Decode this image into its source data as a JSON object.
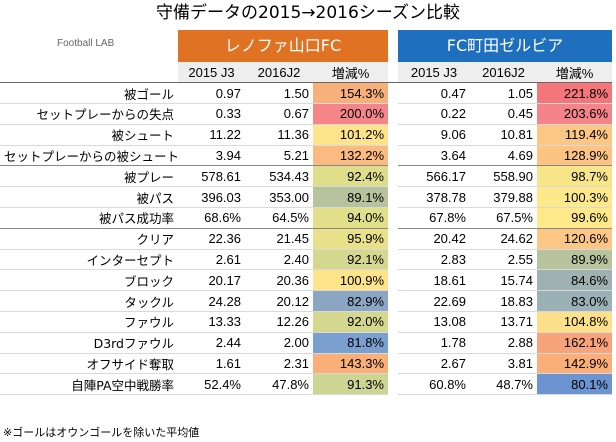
{
  "title": "守備データの2015→2016シーズン比較",
  "brand": "Football LAB",
  "teams": [
    {
      "name": "レノファ山口FC",
      "color": "#e07323"
    },
    {
      "name": "FC町田ゼルビア",
      "color": "#1f6fbf"
    }
  ],
  "columns": {
    "left": [
      "2015 J3",
      "2016J2",
      "増減%"
    ],
    "right": [
      "2015 J3",
      "2016J2",
      "増減%"
    ]
  },
  "rows": [
    {
      "label": "被ゴール",
      "a": [
        "0.97",
        "1.50",
        "154.3%"
      ],
      "ac": "#f8b07a",
      "b": [
        "0.47",
        "1.05",
        "221.8%"
      ],
      "bc": "#f4757a"
    },
    {
      "label": "セットプレーからの失点",
      "a": [
        "0.33",
        "0.67",
        "200.0%"
      ],
      "ac": "#f4868a",
      "b": [
        "0.22",
        "0.45",
        "203.6%"
      ],
      "bc": "#f4848a"
    },
    {
      "label": "被シュート",
      "a": [
        "11.22",
        "11.36",
        "101.2%"
      ],
      "ac": "#fde48a",
      "b": [
        "9.06",
        "10.81",
        "119.4%"
      ],
      "bc": "#fcc684"
    },
    {
      "label": "セットプレーからの被シュート",
      "a": [
        "3.94",
        "5.21",
        "132.2%"
      ],
      "ac": "#fbbb80",
      "b": [
        "3.64",
        "4.69",
        "128.9%"
      ],
      "bc": "#fcc382",
      "group_end": true
    },
    {
      "label": "被プレー",
      "a": [
        "578.61",
        "534.43",
        "92.4%"
      ],
      "ac": "#dedd8c",
      "b": [
        "566.17",
        "558.90",
        "98.7%"
      ],
      "bc": "#f8e58a"
    },
    {
      "label": "被パス",
      "a": [
        "396.03",
        "353.00",
        "89.1%"
      ],
      "ac": "#b6c39c",
      "b": [
        "378.78",
        "379.88",
        "100.3%"
      ],
      "bc": "#fde98a"
    },
    {
      "label": "被パス成功率",
      "a": [
        "68.6%",
        "64.5%",
        "94.0%"
      ],
      "ac": "#e1df8a",
      "b": [
        "67.8%",
        "67.5%",
        "99.6%"
      ],
      "bc": "#fde98a",
      "group_end": true
    },
    {
      "label": "クリア",
      "a": [
        "22.36",
        "21.45",
        "95.9%"
      ],
      "ac": "#e8e18a",
      "b": [
        "20.42",
        "24.62",
        "120.6%"
      ],
      "bc": "#fcc684"
    },
    {
      "label": "インターセプト",
      "a": [
        "2.61",
        "2.40",
        "92.1%"
      ],
      "ac": "#d4d88e",
      "b": [
        "2.83",
        "2.55",
        "89.9%"
      ],
      "bc": "#b6c39c"
    },
    {
      "label": "ブロック",
      "a": [
        "20.17",
        "20.36",
        "100.9%"
      ],
      "ac": "#fde48a",
      "b": [
        "18.61",
        "15.74",
        "84.6%"
      ],
      "bc": "#9fb1b0"
    },
    {
      "label": "タックル",
      "a": [
        "24.28",
        "20.12",
        "82.9%"
      ],
      "ac": "#8aa6c3",
      "b": [
        "22.69",
        "18.83",
        "83.0%"
      ],
      "bc": "#9ab1b5"
    },
    {
      "label": "ファウル",
      "a": [
        "13.33",
        "12.26",
        "92.0%"
      ],
      "ac": "#d4d88e",
      "b": [
        "13.08",
        "13.71",
        "104.8%"
      ],
      "bc": "#fde08a"
    },
    {
      "label": "D3rdファウル",
      "a": [
        "2.44",
        "2.00",
        "81.8%"
      ],
      "ac": "#7ba0cf",
      "b": [
        "1.78",
        "2.88",
        "162.1%"
      ],
      "bc": "#f8a47a"
    },
    {
      "label": "オフサイド奪取",
      "a": [
        "1.61",
        "2.31",
        "143.3%"
      ],
      "ac": "#faae78",
      "b": [
        "2.67",
        "3.81",
        "142.9%"
      ],
      "bc": "#faae78"
    },
    {
      "label": "自陣PA空中戦勝率",
      "a": [
        "52.4%",
        "47.8%",
        "91.3%"
      ],
      "ac": "#ccd592",
      "b": [
        "60.8%",
        "48.7%",
        "80.1%"
      ],
      "bc": "#6c94d1"
    }
  ],
  "footnote": "※ゴールはオウンゴールを除いた平均値"
}
